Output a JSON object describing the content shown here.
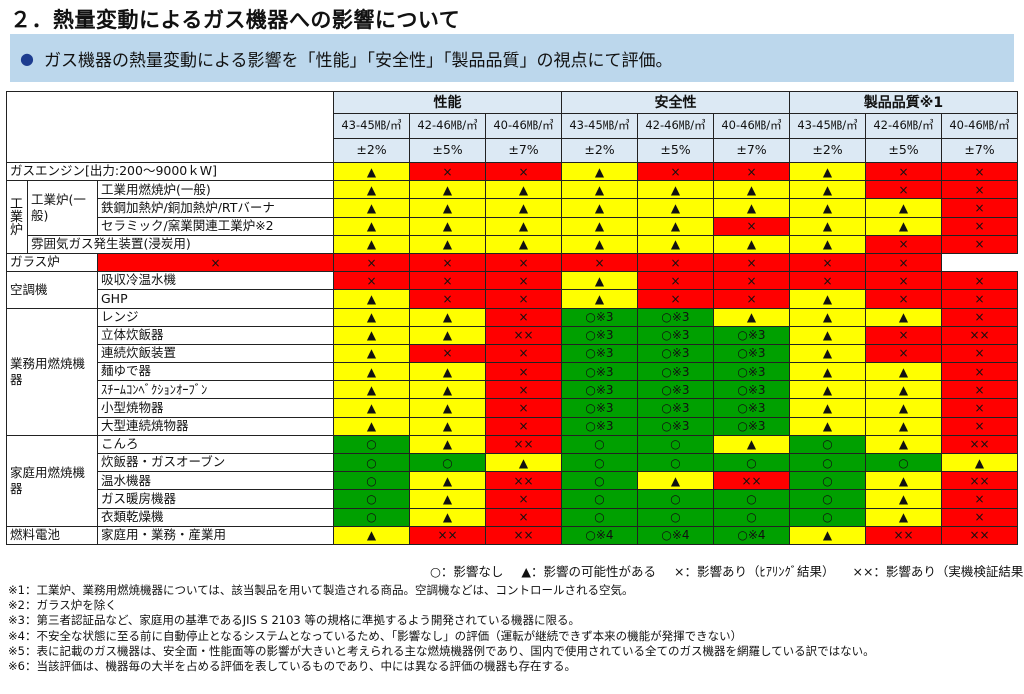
{
  "title": "２．熱量変動によるガス機器への影響について",
  "subtitle": "ガス機器の熱量変動による影響を「性能」「安全性」「製品品質」の視点にて評価。",
  "categories": [
    "性能",
    "安全性",
    "製品品質※1"
  ],
  "ranges": [
    "43-45㎆/㎥",
    "42-46㎆/㎥",
    "40-46㎆/㎥",
    "43-45㎆/㎥",
    "42-46㎆/㎥",
    "40-46㎆/㎥",
    "43-45㎆/㎥",
    "42-46㎆/㎥",
    "40-46㎆/㎥"
  ],
  "tolerances": [
    "±2%",
    "±5%",
    "±7%",
    "±2%",
    "±5%",
    "±7%",
    "±2%",
    "±5%",
    "±7%"
  ],
  "groups": {
    "gas_engine": "ガスエンジン[出力:200～9000ｋW]",
    "industrial_furnace": "工業炉",
    "industrial_general": "工業炉(一般)",
    "aircon": "空調機",
    "commercial": "業務用燃焼機器",
    "household": "家庭用燃焼機器",
    "fuelcell": "燃料電池"
  },
  "rows": [
    {
      "label": "ガスエンジン[出力:200～9000ｋW]",
      "c": [
        "y",
        "r",
        "r",
        "y",
        "r",
        "r",
        "y",
        "r",
        "r"
      ],
      "m": [
        "▲",
        "×",
        "×",
        "▲",
        "×",
        "×",
        "▲",
        "×",
        "×"
      ]
    },
    {
      "label": "工業用燃焼炉(一般)",
      "c": [
        "y",
        "y",
        "y",
        "y",
        "y",
        "y",
        "y",
        "r",
        "r"
      ],
      "m": [
        "▲",
        "▲",
        "▲",
        "▲",
        "▲",
        "▲",
        "▲",
        "×",
        "×"
      ]
    },
    {
      "label": "鉄鋼加熱炉/銅加熱炉/RTバーナ",
      "c": [
        "y",
        "y",
        "y",
        "y",
        "y",
        "y",
        "y",
        "y",
        "r"
      ],
      "m": [
        "▲",
        "▲",
        "▲",
        "▲",
        "▲",
        "▲",
        "▲",
        "▲",
        "×"
      ]
    },
    {
      "label": "セラミック/窯業関連工業炉※2",
      "c": [
        "y",
        "y",
        "y",
        "y",
        "y",
        "r",
        "y",
        "y",
        "r"
      ],
      "m": [
        "▲",
        "▲",
        "▲",
        "▲",
        "▲",
        "×",
        "▲",
        "▲",
        "×"
      ]
    },
    {
      "label": "雰囲気ガス発生装置(浸炭用)",
      "c": [
        "y",
        "y",
        "y",
        "y",
        "y",
        "y",
        "y",
        "r",
        "r"
      ],
      "m": [
        "▲",
        "▲",
        "▲",
        "▲",
        "▲",
        "▲",
        "▲",
        "×",
        "×"
      ]
    },
    {
      "label": "ガラス炉",
      "c": [
        "r",
        "r",
        "r",
        "r",
        "r",
        "r",
        "r",
        "r",
        "r"
      ],
      "m": [
        "×",
        "×",
        "×",
        "×",
        "×",
        "×",
        "×",
        "×",
        "×"
      ]
    },
    {
      "label": "吸収冷温水機",
      "c": [
        "r",
        "r",
        "r",
        "y",
        "r",
        "r",
        "r",
        "r",
        "r"
      ],
      "m": [
        "×",
        "×",
        "×",
        "▲",
        "×",
        "×",
        "×",
        "×",
        "×"
      ]
    },
    {
      "label": "GHP",
      "c": [
        "y",
        "r",
        "r",
        "y",
        "r",
        "r",
        "y",
        "r",
        "r"
      ],
      "m": [
        "▲",
        "×",
        "×",
        "▲",
        "×",
        "×",
        "▲",
        "×",
        "×"
      ]
    },
    {
      "label": "レンジ",
      "c": [
        "y",
        "y",
        "r",
        "g",
        "g",
        "y",
        "y",
        "y",
        "r"
      ],
      "m": [
        "▲",
        "▲",
        "×",
        "○※3",
        "○※3",
        "▲",
        "▲",
        "▲",
        "×"
      ]
    },
    {
      "label": "立体炊飯器",
      "c": [
        "y",
        "y",
        "r",
        "g",
        "g",
        "g",
        "y",
        "r",
        "r"
      ],
      "m": [
        "▲",
        "▲",
        "××",
        "○※3",
        "○※3",
        "○※3",
        "▲",
        "×",
        "××"
      ]
    },
    {
      "label": "連続炊飯装置",
      "c": [
        "y",
        "r",
        "r",
        "g",
        "g",
        "g",
        "y",
        "r",
        "r"
      ],
      "m": [
        "▲",
        "×",
        "×",
        "○※3",
        "○※3",
        "○※3",
        "▲",
        "×",
        "×"
      ]
    },
    {
      "label": "麺ゆで器",
      "c": [
        "y",
        "y",
        "r",
        "g",
        "g",
        "g",
        "y",
        "y",
        "r"
      ],
      "m": [
        "▲",
        "▲",
        "×",
        "○※3",
        "○※3",
        "○※3",
        "▲",
        "▲",
        "×"
      ]
    },
    {
      "label": "ｽﾁｰﾑｺﾝﾍﾞｸｼｮﾝｵｰﾌﾞﾝ",
      "c": [
        "y",
        "y",
        "r",
        "g",
        "g",
        "g",
        "y",
        "y",
        "r"
      ],
      "m": [
        "▲",
        "▲",
        "×",
        "○※3",
        "○※3",
        "○※3",
        "▲",
        "▲",
        "×"
      ]
    },
    {
      "label": "小型焼物器",
      "c": [
        "y",
        "y",
        "r",
        "g",
        "g",
        "g",
        "y",
        "y",
        "r"
      ],
      "m": [
        "▲",
        "▲",
        "×",
        "○※3",
        "○※3",
        "○※3",
        "▲",
        "▲",
        "×"
      ]
    },
    {
      "label": "大型連続焼物器",
      "c": [
        "y",
        "y",
        "r",
        "g",
        "g",
        "g",
        "y",
        "y",
        "r"
      ],
      "m": [
        "▲",
        "▲",
        "×",
        "○※3",
        "○※3",
        "○※3",
        "▲",
        "▲",
        "×"
      ]
    },
    {
      "label": "こんろ",
      "c": [
        "g",
        "y",
        "r",
        "g",
        "g",
        "y",
        "g",
        "y",
        "r"
      ],
      "m": [
        "○",
        "▲",
        "××",
        "○",
        "○",
        "▲",
        "○",
        "▲",
        "××"
      ]
    },
    {
      "label": "炊飯器・ガスオーブン",
      "c": [
        "g",
        "g",
        "y",
        "g",
        "g",
        "g",
        "g",
        "g",
        "y"
      ],
      "m": [
        "○",
        "○",
        "▲",
        "○",
        "○",
        "○",
        "○",
        "○",
        "▲"
      ]
    },
    {
      "label": "温水機器",
      "c": [
        "g",
        "y",
        "r",
        "g",
        "y",
        "r",
        "g",
        "y",
        "r"
      ],
      "m": [
        "○",
        "▲",
        "××",
        "○",
        "▲",
        "××",
        "○",
        "▲",
        "××"
      ]
    },
    {
      "label": "ガス暖房機器",
      "c": [
        "g",
        "y",
        "r",
        "g",
        "g",
        "g",
        "g",
        "y",
        "r"
      ],
      "m": [
        "○",
        "▲",
        "×",
        "○",
        "○",
        "○",
        "○",
        "▲",
        "×"
      ]
    },
    {
      "label": "衣類乾燥機",
      "c": [
        "g",
        "y",
        "r",
        "g",
        "g",
        "g",
        "g",
        "y",
        "r"
      ],
      "m": [
        "○",
        "▲",
        "×",
        "○",
        "○",
        "○",
        "○",
        "▲",
        "×"
      ]
    },
    {
      "label": "家庭用・業務・産業用",
      "c": [
        "y",
        "r",
        "r",
        "g",
        "g",
        "g",
        "y",
        "r",
        "r"
      ],
      "m": [
        "▲",
        "××",
        "××",
        "○※4",
        "○※4",
        "○※4",
        "▲",
        "××",
        "××"
      ]
    }
  ],
  "legend": [
    "○：影響なし",
    "▲：影響の可能性がある",
    "×：影響あり（ﾋｱﾘﾝｸﾞ結果）",
    "××：影響あり（実機検証結果）"
  ],
  "notes": [
    "※1：工業炉、業務用燃焼機器については、該当製品を用いて製造される商品。空調機などは、コントロールされる空気。",
    "※2：ガラス炉を除く",
    "※3：第三者認証品など、家庭用の基準であるJIS S 2103 等の規格に準拠するよう開発されている機器に限る。",
    "※4：不安全な状態に至る前に自動停止となるシステムとなっているため、「影響なし」の評価（運転が継続できず本来の機能が発揮できない）",
    "※5：表に記載のガス機器は、安全面・性能面等の影響が大きいと考えられる主な燃焼機器例であり、国内で使用されている全てのガス機器を網羅している訳ではない。",
    "※6：当該評価は、機器毎の大半を占める評価を表しているものであり、中には異なる評価の機器も存在する。"
  ],
  "colors": {
    "y": "#ffff00",
    "r": "#ff0000",
    "g": "#00a000",
    "header": "#dce9f4",
    "banner": "#bcd7ec"
  }
}
